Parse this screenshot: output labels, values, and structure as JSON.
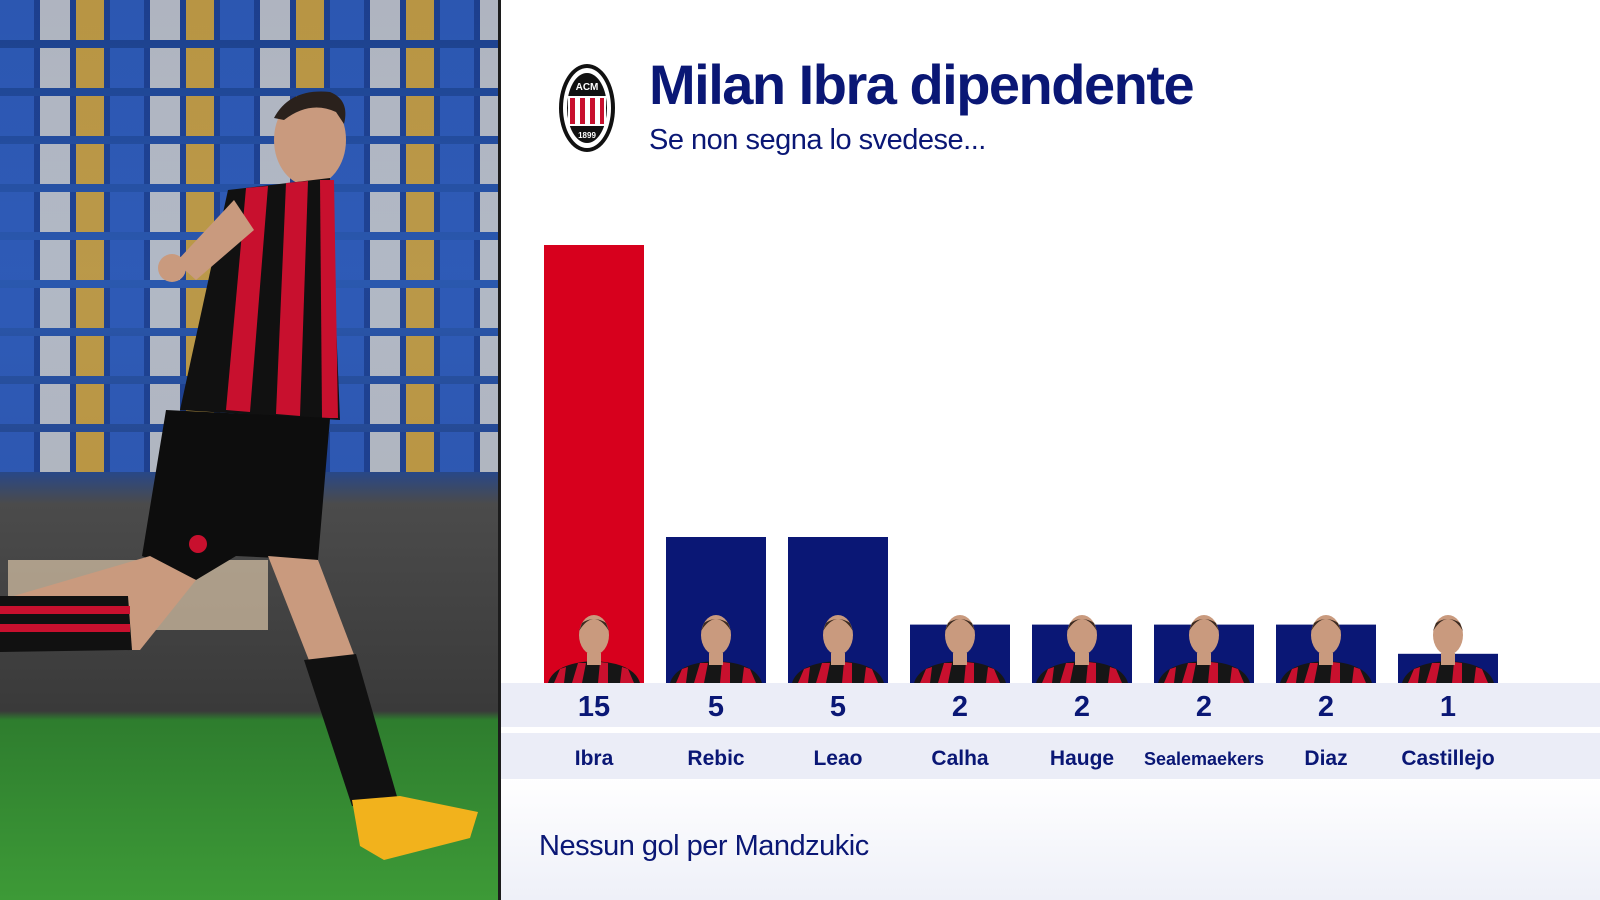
{
  "title": "Milan Ibra dipendente",
  "subtitle": "Se non segna lo svedese...",
  "footnote": "Nessun gol per Mandzukic",
  "crest": {
    "top_text": "ACM",
    "year": "1899"
  },
  "colors": {
    "navy": "#0a1775",
    "red": "#d7001d",
    "band": "#ebedf7"
  },
  "chart_data": {
    "type": "bar",
    "categories": [
      "Ibra",
      "Rebic",
      "Leao",
      "Calha",
      "Hauge",
      "Sealemaekers",
      "Diaz",
      "Castillejo"
    ],
    "values": [
      15,
      5,
      5,
      2,
      2,
      2,
      2,
      1
    ],
    "highlight": "Ibra",
    "highlight_color": "#d7001d",
    "bar_color": "#0a1775",
    "value_labels": [
      "15",
      "5",
      "5",
      "2",
      "2",
      "2",
      "2",
      "1"
    ],
    "ylim": [
      0,
      15
    ],
    "grid": false,
    "legend": "none"
  }
}
